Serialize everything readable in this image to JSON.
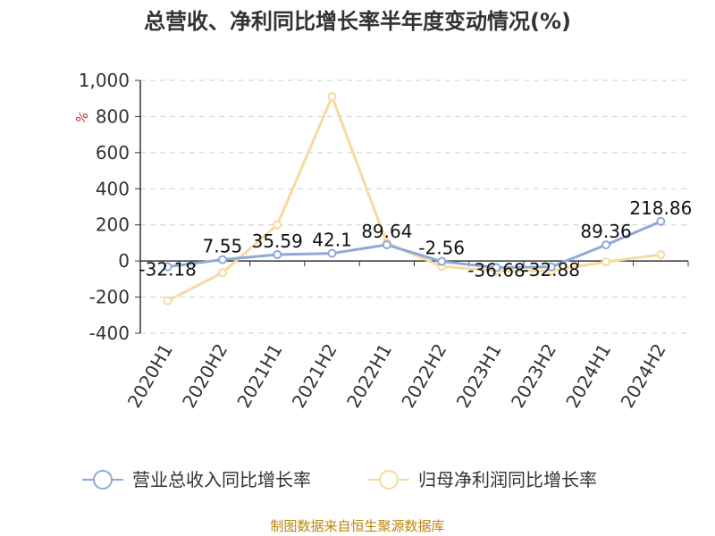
{
  "chart_data": {
    "type": "line",
    "title": "总营收、净利同比增长率半年度变动情况(%)",
    "unit": "%",
    "categories": [
      "2020H1",
      "2020H2",
      "2021H1",
      "2021H2",
      "2022H1",
      "2022H2",
      "2023H1",
      "2023H2",
      "2024H1",
      "2024H2"
    ],
    "ylim": [
      -400,
      1000
    ],
    "yticks": [
      "-400",
      "-200",
      "0",
      "200",
      "400",
      "600",
      "800",
      "1,000"
    ],
    "ytick_values": [
      -400,
      -200,
      0,
      200,
      400,
      600,
      800,
      1000
    ],
    "grid": true,
    "legend_position": "bottom",
    "series": [
      {
        "name": "营业总收入同比增长率",
        "color": "#8fa9d8",
        "values": [
          -32.18,
          7.55,
          35.59,
          42.1,
          89.64,
          -2.56,
          -36.68,
          -32.88,
          89.36,
          218.86
        ],
        "labels": [
          "-32.18",
          "7.55",
          "35.59",
          "42.1",
          "89.64",
          "-2.56",
          "-36.68",
          "-32.88",
          "89.36",
          "218.86"
        ]
      },
      {
        "name": "归母净利润同比增长率",
        "color": "#f8d9a0",
        "values": [
          -220,
          -65,
          200,
          910,
          100,
          -30,
          -55,
          -55,
          -5,
          35
        ]
      }
    ]
  },
  "footer": {
    "source": "制图数据来自恒生聚源数据库"
  }
}
